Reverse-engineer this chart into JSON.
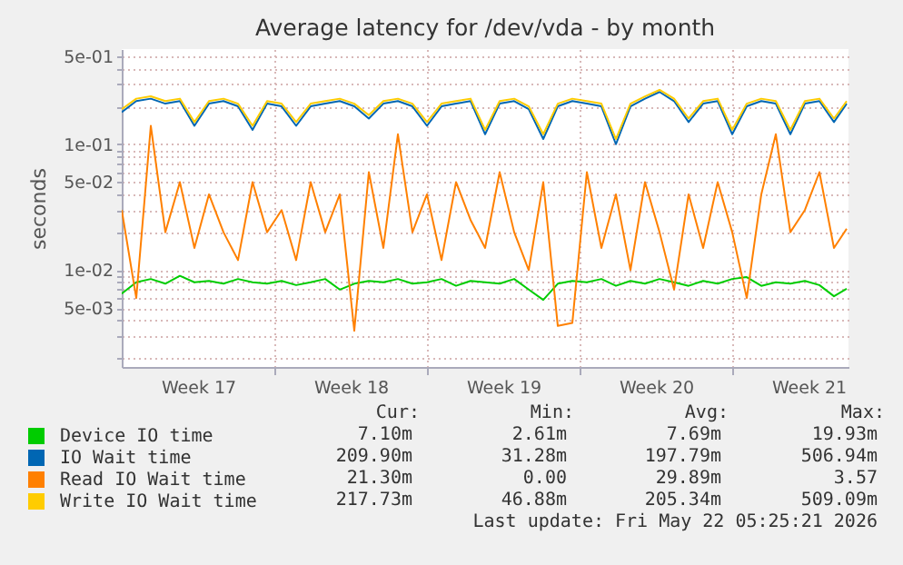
{
  "chart_data": {
    "type": "line",
    "title": "Average latency for /dev/vda - by month",
    "ylabel": "seconds",
    "log": true,
    "grid": true,
    "legend": "bottom left",
    "xlim": [
      "2026-04-20T00:00",
      "2026-05-23T08:00"
    ],
    "xticks": [
      {
        "value": "2026-04-23T12:00",
        "label": "Week 17"
      },
      {
        "value": "2026-04-27T00:00",
        "label": null
      },
      {
        "value": "2026-04-30T12:00",
        "label": "Week 18"
      },
      {
        "value": "2026-05-04T00:00",
        "label": null
      },
      {
        "value": "2026-05-07T12:00",
        "label": "Week 19"
      },
      {
        "value": "2026-05-11T00:00",
        "label": null
      },
      {
        "value": "2026-05-14T12:00",
        "label": "Week 20"
      },
      {
        "value": "2026-05-18T00:00",
        "label": null
      },
      {
        "value": "2026-05-21T12:00",
        "label": "Week 21"
      }
    ],
    "ylim": [
      0.0017,
      0.57
    ],
    "yticks": [
      {
        "value": 0.002,
        "label": null
      },
      {
        "value": 0.003,
        "label": null
      },
      {
        "value": 0.004,
        "label": null
      },
      {
        "value": 0.005,
        "label": "5e-03"
      },
      {
        "value": 0.006,
        "label": null
      },
      {
        "value": 0.007,
        "label": null
      },
      {
        "value": 0.008,
        "label": null
      },
      {
        "value": 0.009,
        "label": null
      },
      {
        "value": 0.01,
        "label": "1e-02"
      },
      {
        "value": 0.02,
        "label": null
      },
      {
        "value": 0.03,
        "label": null
      },
      {
        "value": 0.04,
        "label": null
      },
      {
        "value": 0.05,
        "label": "5e-02"
      },
      {
        "value": 0.06,
        "label": null
      },
      {
        "value": 0.07,
        "label": null
      },
      {
        "value": 0.08,
        "label": null
      },
      {
        "value": 0.09,
        "label": null
      },
      {
        "value": 0.1,
        "label": "1e-01"
      },
      {
        "value": 0.2,
        "label": null
      },
      {
        "value": 0.3,
        "label": null
      },
      {
        "value": 0.4,
        "label": null
      },
      {
        "value": 0.5,
        "label": "5e-01"
      }
    ],
    "x": [
      "2026-04-20T00:00",
      "2026-04-20T16:00",
      "2026-04-21T08:00",
      "2026-04-22T00:00",
      "2026-04-22T16:00",
      "2026-04-23T08:00",
      "2026-04-24T00:00",
      "2026-04-24T16:00",
      "2026-04-25T08:00",
      "2026-04-26T00:00",
      "2026-04-26T16:00",
      "2026-04-27T08:00",
      "2026-04-28T00:00",
      "2026-04-28T16:00",
      "2026-04-29T08:00",
      "2026-04-30T00:00",
      "2026-04-30T16:00",
      "2026-05-01T08:00",
      "2026-05-02T00:00",
      "2026-05-02T16:00",
      "2026-05-03T08:00",
      "2026-05-04T00:00",
      "2026-05-04T16:00",
      "2026-05-05T08:00",
      "2026-05-06T00:00",
      "2026-05-06T16:00",
      "2026-05-07T08:00",
      "2026-05-08T00:00",
      "2026-05-08T16:00",
      "2026-05-09T08:00",
      "2026-05-10T00:00",
      "2026-05-10T16:00",
      "2026-05-11T08:00",
      "2026-05-12T00:00",
      "2026-05-12T16:00",
      "2026-05-13T08:00",
      "2026-05-14T00:00",
      "2026-05-14T16:00",
      "2026-05-15T08:00",
      "2026-05-16T00:00",
      "2026-05-16T16:00",
      "2026-05-17T08:00",
      "2026-05-18T00:00",
      "2026-05-18T16:00",
      "2026-05-19T08:00",
      "2026-05-20T00:00",
      "2026-05-20T16:00",
      "2026-05-21T08:00",
      "2026-05-22T00:00",
      "2026-05-22T16:00",
      "2026-05-23T06:00"
    ],
    "series": [
      {
        "name": "Device IO time",
        "color": "#00cc00",
        "values": [
          0.0065,
          0.008,
          0.0085,
          0.0078,
          0.009,
          0.008,
          0.0082,
          0.0078,
          0.0085,
          0.008,
          0.0078,
          0.0082,
          0.0076,
          0.008,
          0.0085,
          0.007,
          0.0078,
          0.0082,
          0.008,
          0.0085,
          0.0078,
          0.008,
          0.0085,
          0.0075,
          0.0082,
          0.008,
          0.0078,
          0.0085,
          0.007,
          0.0058,
          0.0078,
          0.0082,
          0.008,
          0.0085,
          0.0075,
          0.0082,
          0.0078,
          0.0085,
          0.008,
          0.0075,
          0.0082,
          0.0078,
          0.0085,
          0.0088,
          0.0075,
          0.008,
          0.0078,
          0.0082,
          0.0076,
          0.0062,
          0.0071
        ]
      },
      {
        "name": "IO Wait time",
        "color": "#0066b3",
        "values": [
          0.18,
          0.22,
          0.23,
          0.21,
          0.22,
          0.14,
          0.21,
          0.22,
          0.2,
          0.13,
          0.21,
          0.2,
          0.14,
          0.2,
          0.21,
          0.22,
          0.2,
          0.16,
          0.21,
          0.22,
          0.2,
          0.14,
          0.2,
          0.21,
          0.22,
          0.12,
          0.21,
          0.22,
          0.19,
          0.11,
          0.2,
          0.22,
          0.21,
          0.2,
          0.1,
          0.2,
          0.23,
          0.26,
          0.22,
          0.15,
          0.21,
          0.22,
          0.12,
          0.2,
          0.22,
          0.21,
          0.12,
          0.21,
          0.22,
          0.15,
          0.21
        ]
      },
      {
        "name": "Read IO Wait time",
        "color": "#ff8000",
        "values": [
          0.03,
          0.006,
          0.14,
          0.02,
          0.05,
          0.015,
          0.04,
          0.02,
          0.012,
          0.05,
          0.02,
          0.03,
          0.012,
          0.05,
          0.02,
          0.04,
          0.0033,
          0.06,
          0.015,
          0.12,
          0.02,
          0.04,
          0.012,
          0.05,
          0.025,
          0.015,
          0.06,
          0.02,
          0.01,
          0.05,
          0.0036,
          0.0038,
          0.06,
          0.015,
          0.04,
          0.01,
          0.05,
          0.02,
          0.007,
          0.04,
          0.015,
          0.05,
          0.02,
          0.006,
          0.04,
          0.12,
          0.02,
          0.03,
          0.06,
          0.015,
          0.0213
        ]
      },
      {
        "name": "Write IO Wait time",
        "color": "#ffcc00",
        "values": [
          0.19,
          0.23,
          0.24,
          0.22,
          0.23,
          0.15,
          0.22,
          0.23,
          0.21,
          0.14,
          0.22,
          0.21,
          0.15,
          0.21,
          0.22,
          0.23,
          0.21,
          0.17,
          0.22,
          0.23,
          0.21,
          0.15,
          0.21,
          0.22,
          0.23,
          0.13,
          0.22,
          0.23,
          0.2,
          0.12,
          0.21,
          0.23,
          0.22,
          0.21,
          0.11,
          0.21,
          0.24,
          0.27,
          0.23,
          0.16,
          0.22,
          0.23,
          0.13,
          0.21,
          0.23,
          0.22,
          0.13,
          0.22,
          0.23,
          0.16,
          0.22
        ]
      }
    ],
    "annotations": [
      "Cur:",
      "Min:",
      "Avg:",
      "Max:",
      "7.10m",
      "2.61m",
      "7.69m",
      "19.93m",
      "209.90m",
      "31.28m",
      "197.79m",
      "506.94m",
      "21.30m",
      "0.00",
      "29.89m",
      "3.57",
      "217.73m",
      "46.88m",
      "205.34m",
      "509.09m",
      "Last update: Fri May 22 05:25:21 2026"
    ]
  }
}
